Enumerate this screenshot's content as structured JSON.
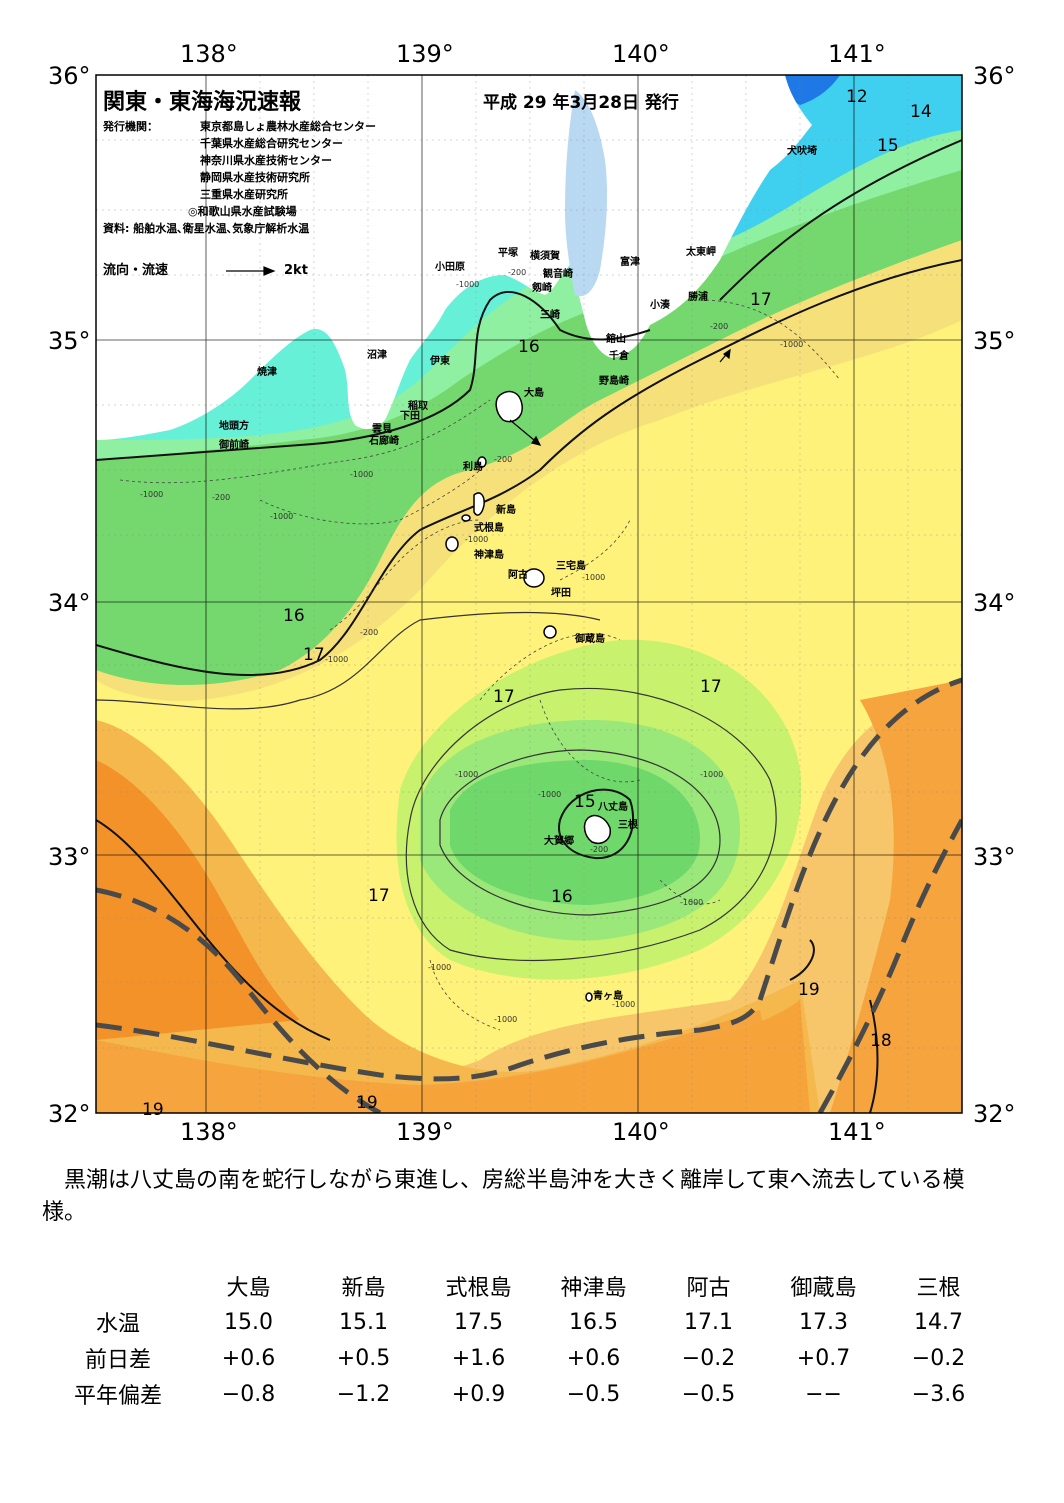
{
  "map": {
    "title": "関東・東海海況速報",
    "issue_date": "平成 29 年3月28日 発行",
    "publishers_label": "発行機関：",
    "publishers": [
      "東京都島しょ農林水産総合センター",
      "千葉県水産総合研究センター",
      "神奈川県水産技術センター",
      "静岡県水産技術研究所",
      "三重県水産研究所",
      "◎和歌山県水産試験場"
    ],
    "sources": "資料: 船舶水温､衛星水温､気象庁解析水温",
    "legend_label": "流向・流速",
    "legend_speed": "2kt",
    "lon_labels": [
      "138°",
      "139°",
      "140°",
      "141°"
    ],
    "lat_labels": [
      "36°",
      "35°",
      "34°",
      "33°",
      "32°"
    ],
    "place_names": {
      "odawara": "小田原",
      "hiratsuka": "平塚",
      "yokosuka": "横須賀",
      "kannonzaki": "観音崎",
      "tsurugizaki": "剱崎",
      "misaki": "三崎",
      "futtsu": "富津",
      "tateyama": "館山",
      "chikura": "千倉",
      "nojimazaki": "野島崎",
      "kominato": "小湊",
      "katsuura": "勝浦",
      "taitomisaki": "太東岬",
      "inubosaki": "犬吠埼",
      "numazu": "沼津",
      "ito": "伊東",
      "inatori": "稲取",
      "shimoda": "下田",
      "kumomi": "雲見",
      "irozaki": "石廊崎",
      "yaizu": "焼津",
      "jitokata": "地頭方",
      "omaezaki": "御前崎",
      "oshima": "大島",
      "toshima": "利島",
      "niijima": "新島",
      "shikinejima": "式根島",
      "kozushima": "神津島",
      "miyakejima": "三宅島",
      "ako": "阿古",
      "tsubota": "坪田",
      "mikurajima": "御蔵島",
      "hachijojima": "八丈島",
      "mitsune": "三根",
      "okago": "大賀郷",
      "aogashima": "青ヶ島"
    },
    "isotherms": [
      "12",
      "14",
      "15",
      "17",
      "16",
      "16",
      "17",
      "17",
      "17",
      "15",
      "17",
      "16",
      "19",
      "18",
      "19",
      "19"
    ],
    "depth_contours": [
      "-1000",
      "-200",
      "-1000",
      "-200",
      "-1000",
      "-200",
      "-1000",
      "-200",
      "-1000",
      "-200",
      "-1000",
      "-1000",
      "-1000",
      "-1000",
      "-1000",
      "-1000",
      "-1000",
      "-1000",
      "-200",
      "-1000",
      "-1000"
    ]
  },
  "summary": "黒潮は八丈島の南を蛇行しながら東進し、房総半島沖を大きく離岸して東へ流去している模様。",
  "table": {
    "columns": [
      "大島",
      "新島",
      "式根島",
      "神津島",
      "阿古",
      "御蔵島",
      "三根"
    ],
    "rows": [
      {
        "label": "水温",
        "values": [
          "15.0",
          "15.1",
          "17.5",
          "16.5",
          "17.1",
          "17.3",
          "14.7"
        ]
      },
      {
        "label": "前日差",
        "values": [
          "+0.6",
          "+0.5",
          "+1.6",
          "+0.6",
          "−0.2",
          "+0.7",
          "−0.2"
        ]
      },
      {
        "label": "平年偏差",
        "values": [
          "−0.8",
          "−1.2",
          "+0.9",
          "−0.5",
          "−0.5",
          "−−",
          "−3.6"
        ]
      }
    ]
  },
  "colors": {
    "land": "#ffffff",
    "temp_12_14": "#1e90ff",
    "temp_14_15": "#3fc8f0",
    "temp_15_16": "#7ef5c8",
    "temp_16_17": "#6cd86a",
    "temp_17_18": "#c9f56f",
    "temp_18_19": "#fff06e",
    "temp_19_20": "#f5b34a",
    "temp_20_plus": "#f08c1e",
    "kuroshio_axis": "#4a4a4a"
  }
}
